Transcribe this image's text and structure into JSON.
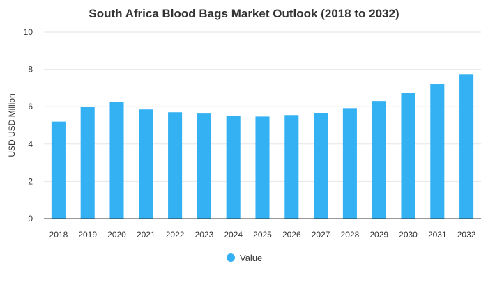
{
  "chart_data": {
    "type": "bar",
    "title": "South Africa Blood Bags Market Outlook (2018 to 2032)",
    "xlabel": "",
    "ylabel": "USD USD Million",
    "categories": [
      "2018",
      "2019",
      "2020",
      "2021",
      "2022",
      "2023",
      "2024",
      "2025",
      "2026",
      "2027",
      "2028",
      "2029",
      "2030",
      "2031",
      "2032"
    ],
    "series": [
      {
        "name": "Value",
        "values": [
          5.2,
          6.0,
          6.25,
          5.85,
          5.7,
          5.63,
          5.5,
          5.47,
          5.55,
          5.67,
          5.92,
          6.3,
          6.75,
          7.2,
          7.75
        ]
      }
    ],
    "ylim": [
      0,
      10
    ],
    "yticks": [
      "0",
      "2",
      "4",
      "6",
      "8",
      "10"
    ],
    "grid": true,
    "legend_position": "bottom",
    "colors": {
      "bar": "#33b1f3",
      "grid": "#e6e6e6",
      "axis": "#333333",
      "text": "#333333"
    }
  }
}
